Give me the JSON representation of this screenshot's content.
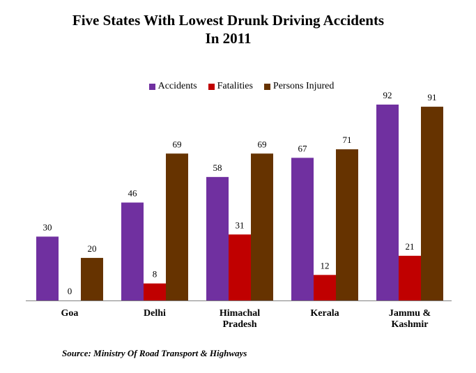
{
  "chart_data": {
    "type": "bar",
    "title_lines": [
      "Five States With Lowest Drunk Driving Accidents",
      "In 2011"
    ],
    "categories": [
      [
        "Goa"
      ],
      [
        "Delhi"
      ],
      [
        "Himachal",
        "Pradesh"
      ],
      [
        "Kerala"
      ],
      [
        "Jammu &",
        "Kashmir"
      ]
    ],
    "series": [
      {
        "name": "Accidents",
        "color": "#7030a0",
        "values": [
          30,
          46,
          58,
          67,
          92
        ]
      },
      {
        "name": "Fatalities",
        "color": "#c00000",
        "values": [
          0,
          8,
          31,
          12,
          21
        ]
      },
      {
        "name": "Persons Injured",
        "color": "#663300",
        "values": [
          20,
          69,
          69,
          71,
          91
        ]
      }
    ],
    "ylim": [
      0,
      92
    ],
    "legend_position": "top",
    "grid": false
  },
  "source_text": "Source: Ministry Of Road Transport & Highways"
}
